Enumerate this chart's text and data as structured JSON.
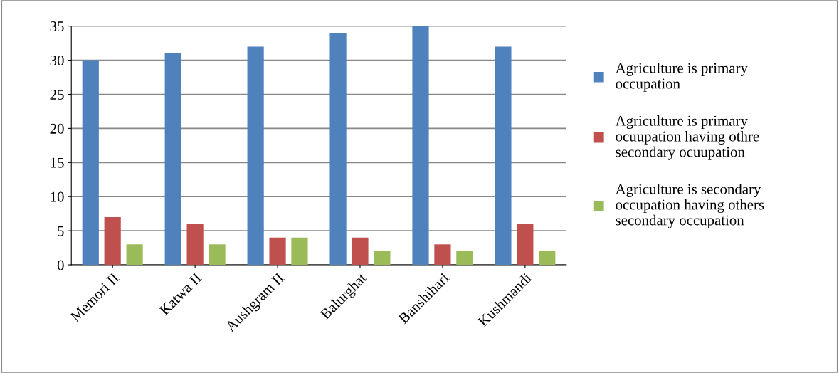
{
  "chart_data": {
    "type": "bar",
    "categories": [
      "Memori II",
      "Katwa II",
      "Aushgram II",
      "Balurghat",
      "Banshihari",
      "Kushmandi"
    ],
    "series": [
      {
        "name": "Agriculture is primary occupation",
        "color": "#4f81bd",
        "values": [
          30,
          31,
          32,
          34,
          35,
          32
        ]
      },
      {
        "name": "Agriculture is primary ocuupation having othre secondary ocuupation",
        "color": "#c0504d",
        "values": [
          7,
          6,
          4,
          4,
          3,
          6
        ]
      },
      {
        "name": "Agriculture is secondary occupation having others secondary occupation",
        "color": "#9bbb59",
        "values": [
          3,
          3,
          4,
          2,
          2,
          2
        ]
      }
    ],
    "ylim": [
      0,
      35
    ],
    "yticks": [
      0,
      5,
      10,
      15,
      20,
      25,
      30,
      35
    ],
    "grid": "y",
    "legend": "right"
  }
}
